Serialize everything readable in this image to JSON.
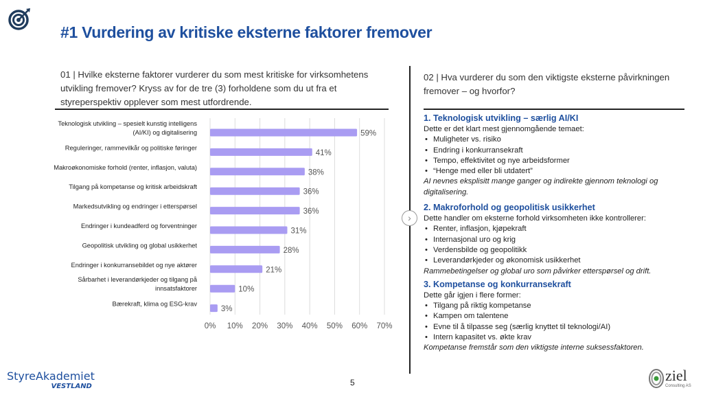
{
  "title": "#1 Vurdering av kritiske eksterne faktorer fremover",
  "q1": "01 | Hvilke eksterne faktorer vurderer du som mest kritiske for virksomhetens utvikling fremover? Kryss av for de tre (3) forholdene som du ut fra et styreperspektiv opplever som mest utfordrende.",
  "q2": "02 | Hva vurderer du som den viktigste eksterne påvirkningen fremover – og hvorfor?",
  "sections": [
    {
      "heading": "1. Teknologisk utvikling – særlig AI/KI",
      "intro": "Dette er det klart mest gjennomgående temaet:",
      "bullets": [
        "Muligheter vs. risiko",
        "Endring i konkurransekraft",
        "Tempo, effektivitet og nye arbeidsformer",
        "“Henge med eller bli utdatert”"
      ],
      "note": "AI nevnes eksplisitt mange ganger og indirekte gjennom teknologi og digitalisering."
    },
    {
      "heading": "2. Makroforhold og geopolitisk usikkerhet",
      "intro": "Dette handler om eksterne forhold virksomheten ikke kontrollerer:",
      "bullets": [
        "Renter, inflasjon, kjøpekraft",
        "Internasjonal uro og krig",
        "Verdensbilde og geopolitikk",
        "Leverandørkjeder og økonomisk usikkerhet"
      ],
      "note": "Rammebetingelser og global uro som påvirker etterspørsel og drift."
    },
    {
      "heading": "3. Kompetanse og konkurransekraft",
      "intro": "Dette går igjen i flere former:",
      "bullets": [
        "Tilgang på riktig kompetanse",
        "Kampen om talentene",
        "Evne til å tilpasse seg (særlig knyttet til teknologi/AI)",
        "Intern kapasitet vs. økte krav"
      ],
      "note": "Kompetanse fremstår som den viktigste interne suksessfaktoren."
    }
  ],
  "footer": {
    "logo_left": "StyreAkademiet",
    "logo_left_sub": "VESTLAND",
    "page": "5",
    "logo_right": "ziel",
    "logo_right_sub": "Consulting AS"
  },
  "colors": {
    "bar": "#a99cf2",
    "title": "#1e4f9e"
  },
  "chart_data": {
    "type": "bar",
    "orientation": "horizontal",
    "categories": [
      [
        "Teknologisk utvikling – spesielt kunstig intelligens",
        "(AI/KI) og digitalisering"
      ],
      [
        "Reguleringer, rammevilkår og politiske føringer"
      ],
      [
        "Makroøkonomiske forhold (renter, inflasjon, valuta)"
      ],
      [
        "Tilgang på kompetanse og kritisk arbeidskraft"
      ],
      [
        "Markedsutvikling og endringer i etterspørsel"
      ],
      [
        "Endringer i kundeadferd og forventninger"
      ],
      [
        "Geopolitisk utvikling og global usikkerhet"
      ],
      [
        "Endringer i konkurransebildet og nye aktører"
      ],
      [
        "Sårbarhet i leverandørkjeder og tilgang på",
        "innsatsfaktorer"
      ],
      [
        "Bærekraft, klima og ESG-krav"
      ]
    ],
    "values": [
      59,
      41,
      38,
      36,
      36,
      31,
      28,
      21,
      10,
      3
    ],
    "value_labels": [
      "59%",
      "41%",
      "38%",
      "36%",
      "36%",
      "31%",
      "28%",
      "21%",
      "10%",
      "3%"
    ],
    "xlim": [
      0,
      70
    ],
    "xticks": [
      "0%",
      "10%",
      "20%",
      "30%",
      "40%",
      "50%",
      "60%",
      "70%"
    ],
    "grid": true
  }
}
